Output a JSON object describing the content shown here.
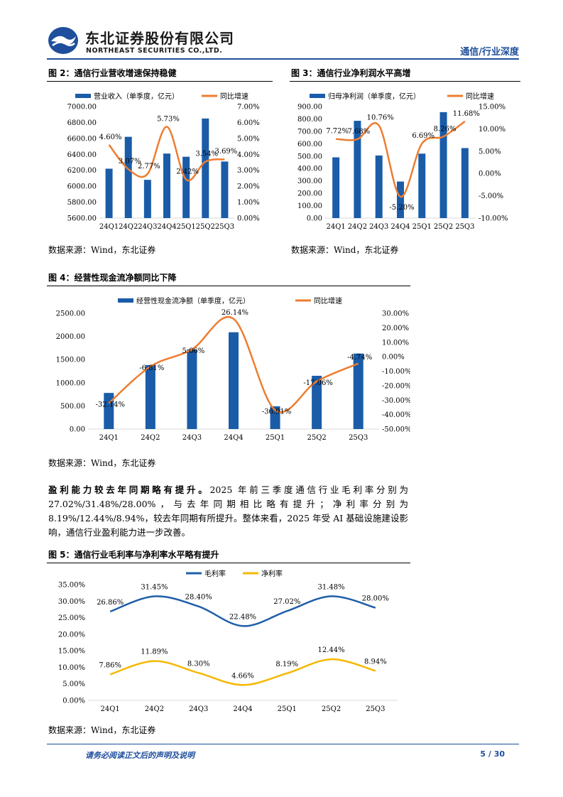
{
  "header": {
    "company_cn": "东北证券股份有限公司",
    "company_en": "NORTHEAST SECURITIES CO.,LTD.",
    "report_type": "通信/行业深度"
  },
  "colors": {
    "brand": "#1f4e9c",
    "bar": "#1a5ca8",
    "line": "#ed7d31",
    "net_margin": "#f5b800"
  },
  "figures": {
    "fig2": {
      "title": "图 2：通信行业营收增速保持稳健",
      "source": "数据来源：Wind，东北证券"
    },
    "fig3": {
      "title": "图 3：通信行业净利润水平高增",
      "source": "数据来源：Wind，东北证券"
    },
    "fig4": {
      "title": "图 4：经营性现金流净额同比下降",
      "source": "数据来源：Wind，东北证券"
    },
    "fig5": {
      "title": "图 5：通信行业毛利率与净利率水平略有提升",
      "source": "数据来源：Wind，东北证券"
    }
  },
  "paragraph": {
    "lead": "盈利能力较去年同期略有提升。",
    "body": "2025 年前三季度通信行业毛利率分别为 27.02%/31.48%/28.00%，与去年同期相比略有提升；净利率分别为 8.19%/12.44%/8.94%，较去年同期有所提升。整体来看，2025 年受 AI 基础设施建设影响，通信行业盈利能力进一步改善。"
  },
  "chart_data": [
    {
      "id": "fig2",
      "type": "bar",
      "categories": [
        "24Q1",
        "24Q2",
        "24Q3",
        "24Q4",
        "25Q1",
        "25Q2",
        "25Q3"
      ],
      "series": [
        {
          "name": "营业收入（单季度，亿元）",
          "type": "bar",
          "axis": "left",
          "values": [
            6220,
            6620,
            6080,
            6410,
            6370,
            6850,
            6310
          ]
        },
        {
          "name": "同比增速",
          "type": "line",
          "axis": "right",
          "values": [
            4.6,
            3.07,
            2.77,
            5.73,
            2.42,
            3.54,
            3.69
          ],
          "labels": [
            "4.60%",
            "3.07%",
            "2.77%",
            "5.73%",
            "2.42%",
            "3.54%",
            "3.69%"
          ]
        }
      ],
      "ylim": [
        5600,
        7000
      ],
      "yticks": [
        "5600.00",
        "5800.00",
        "6000.00",
        "6200.00",
        "6400.00",
        "6600.00",
        "6800.00",
        "7000.00"
      ],
      "y2lim": [
        0,
        7
      ],
      "y2ticks": [
        "0.00%",
        "1.00%",
        "2.00%",
        "3.00%",
        "4.00%",
        "5.00%",
        "6.00%",
        "7.00%"
      ],
      "legend": "top"
    },
    {
      "id": "fig3",
      "type": "bar",
      "categories": [
        "24Q1",
        "24Q2",
        "24Q3",
        "24Q4",
        "25Q1",
        "25Q2",
        "25Q3"
      ],
      "series": [
        {
          "name": "归母净利润（单季度，亿元）",
          "type": "bar",
          "axis": "left",
          "values": [
            490,
            785,
            505,
            295,
            520,
            855,
            565
          ]
        },
        {
          "name": "同比增速",
          "type": "line",
          "axis": "right",
          "values": [
            7.72,
            7.68,
            10.76,
            -5.2,
            6.69,
            8.26,
            11.68
          ],
          "labels": [
            "7.72%",
            "7.68%",
            "10.76%",
            "-5.20%",
            "6.69%",
            "8.26%",
            "11.68%"
          ]
        }
      ],
      "ylim": [
        0,
        900
      ],
      "yticks": [
        "0.00",
        "100.00",
        "200.00",
        "300.00",
        "400.00",
        "500.00",
        "600.00",
        "700.00",
        "800.00",
        "900.00"
      ],
      "y2lim": [
        -10,
        15
      ],
      "y2ticks": [
        "-10.00%",
        "-5.00%",
        "0.00%",
        "5.00%",
        "10.00%",
        "15.00%"
      ],
      "legend": "top"
    },
    {
      "id": "fig4",
      "type": "bar",
      "categories": [
        "24Q1",
        "24Q2",
        "24Q3",
        "24Q4",
        "25Q1",
        "25Q2",
        "25Q3"
      ],
      "series": [
        {
          "name": "经营性现金流净额（单季度，亿元）",
          "type": "bar",
          "axis": "left",
          "values": [
            780,
            1380,
            1720,
            2090,
            490,
            1150,
            1630
          ]
        },
        {
          "name": "同比增速",
          "type": "line",
          "axis": "right",
          "values": [
            -32.14,
            -6.81,
            5.06,
            26.14,
            -36.91,
            -17.06,
            -4.74
          ],
          "labels": [
            "-32.14%",
            "-6.81%",
            "5.06%",
            "26.14%",
            "-36.91%",
            "-17.06%",
            "-4.74%"
          ]
        }
      ],
      "ylim": [
        0,
        2500
      ],
      "yticks": [
        "0.00",
        "500.00",
        "1000.00",
        "1500.00",
        "2000.00",
        "2500.00"
      ],
      "y2lim": [
        -50,
        30
      ],
      "y2ticks": [
        "-50.00%",
        "-40.00%",
        "-30.00%",
        "-20.00%",
        "-10.00%",
        "0.00%",
        "10.00%",
        "20.00%",
        "30.00%"
      ],
      "legend": "top"
    },
    {
      "id": "fig5",
      "type": "line",
      "categories": [
        "24Q1",
        "24Q2",
        "24Q3",
        "24Q4",
        "25Q1",
        "25Q2",
        "25Q3"
      ],
      "series": [
        {
          "name": "毛利率",
          "values": [
            26.86,
            31.45,
            28.4,
            22.48,
            27.02,
            31.48,
            28.0
          ],
          "labels": [
            "26.86%",
            "31.45%",
            "28.40%",
            "22.48%",
            "27.02%",
            "31.48%",
            "28.00%"
          ]
        },
        {
          "name": "净利率",
          "values": [
            7.86,
            11.89,
            8.3,
            4.66,
            8.19,
            12.44,
            8.94
          ],
          "labels": [
            "7.86%",
            "11.89%",
            "8.30%",
            "4.66%",
            "8.19%",
            "12.44%",
            "8.94%"
          ]
        }
      ],
      "ylim": [
        0,
        35
      ],
      "yticks": [
        "0.00%",
        "5.00%",
        "10.00%",
        "15.00%",
        "20.00%",
        "25.00%",
        "30.00%",
        "35.00%"
      ],
      "legend": "top"
    }
  ],
  "footer": {
    "disclaimer": "请务必阅读正文后的声明及说明",
    "page": "5 / 30"
  }
}
